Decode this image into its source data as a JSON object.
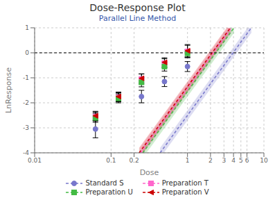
{
  "chart_data": {
    "type": "scatter",
    "title": "Dose-Response Plot",
    "subtitle": "Parallel Line Method",
    "xlabel": "Dose",
    "ylabel": "LnResponse",
    "log": "x",
    "xlim": [
      0.01,
      10
    ],
    "ylim": [
      -4,
      1
    ],
    "xticks": [
      0.01,
      0.1,
      0.2,
      1,
      2,
      3,
      4,
      5,
      6,
      10
    ],
    "yticks": [
      -4,
      -3,
      -2,
      -1,
      0,
      1
    ],
    "grid": true,
    "legend": "bottom",
    "hline": 0,
    "ci_half_width": 0.2,
    "series": [
      {
        "name": "Standard S",
        "color": "#7777cc",
        "marker": "circle",
        "line_style": "dashed",
        "x": [
          0.0625,
          0.25,
          0.5,
          1.0
        ],
        "values": [
          -3.05,
          -1.75,
          -1.15,
          -0.55
        ],
        "errors": [
          0.35,
          0.25,
          0.2,
          0.2
        ],
        "fit_x": [
          0.438596,
          6.84198
        ],
        "fit_values": [
          -4,
          1
        ]
      },
      {
        "name": "Preparation T",
        "color": "#ff66cc",
        "marker": "square",
        "line_style": "dashed",
        "x": [
          0.0625,
          0.125,
          0.25,
          0.5,
          1.0
        ],
        "values": [
          -2.55,
          -1.78,
          -1.05,
          -0.42,
          0.05
        ],
        "errors": [
          0.18,
          0.18,
          0.2,
          0.18,
          0.25
        ],
        "fit_x": [
          0.242299,
          3.7798
        ],
        "fit_values": [
          -4,
          1
        ]
      },
      {
        "name": "Preparation U",
        "color": "#44bb44",
        "marker": "square",
        "line_style": "dashed",
        "x": [
          0.0625,
          0.125,
          0.25,
          0.5,
          1.0
        ],
        "values": [
          -2.6,
          -1.82,
          -1.18,
          -0.55,
          -0.02
        ],
        "errors": [
          0.18,
          0.18,
          0.18,
          0.18,
          0.15
        ],
        "fit_x": [
          0.26024,
          4.05966
        ],
        "fit_values": [
          -4,
          1
        ]
      },
      {
        "name": "Preparation V",
        "color": "#cc0000",
        "marker": "triangle-left",
        "line_style": "dashed",
        "x": [
          0.0625,
          0.125,
          0.25,
          0.5,
          1.0
        ],
        "values": [
          -2.52,
          -1.75,
          -1.02,
          -0.38,
          0.08
        ],
        "errors": [
          0.18,
          0.18,
          0.18,
          0.18,
          0.25
        ],
        "fit_x": [
          0.233157,
          3.63718
        ],
        "fit_values": [
          -4,
          1
        ]
      }
    ]
  }
}
